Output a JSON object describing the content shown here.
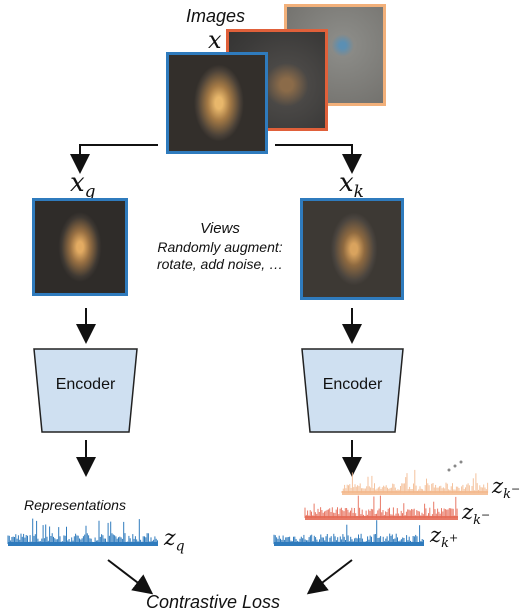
{
  "images_title": "Images",
  "x_label": "x",
  "xq_label": "x",
  "xq_sub": "q",
  "xk_label": "x",
  "xk_sub": "k",
  "views_title": "Views",
  "views_desc_1": "Randomly augment:",
  "views_desc_2": "rotate, add noise, …",
  "encoder_left": "Encoder",
  "encoder_right": "Encoder",
  "representations": "Representations",
  "zq_label": "z",
  "zq_sub": "q",
  "zk_minus_1": "z",
  "zk_minus_1_sub": "k",
  "zk_minus_1_sup": "−",
  "zk_minus_2": "z",
  "zk_minus_2_sub": "k",
  "zk_minus_2_sup": "−",
  "zk_plus": "z",
  "zk_plus_sub": "k",
  "zk_plus_sup": "+",
  "contrastive_loss": "Contrastive Loss",
  "colors": {
    "blue_border": "#2f7bbd",
    "red_border": "#e0603a",
    "peach_border": "#f2b07a",
    "encoder_fill": "#cfe0f1",
    "encoder_stroke": "#222222",
    "blue_spec": "#2f7bbd",
    "red_spec": "#e66a55",
    "peach_spec": "#f3b88c"
  }
}
